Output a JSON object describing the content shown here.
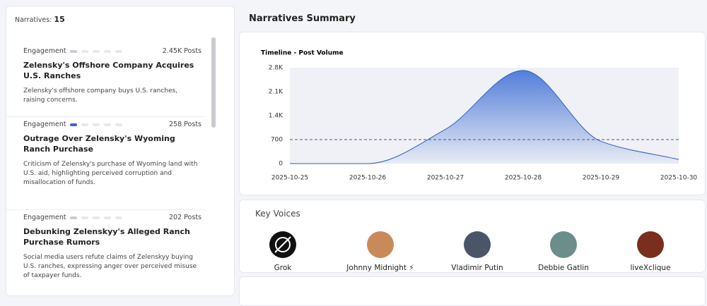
{
  "sidebar": {
    "count_label": "Narratives:",
    "count": "15",
    "items": [
      {
        "engagement_label": "Engagement",
        "posts": "2.45K Posts",
        "title": "Zelensky's Offshore Company Acquires U.S. Ranches",
        "description": "Zelensky's offshore company buys U.S. ranches, raising concerns."
      },
      {
        "engagement_label": "Engagement",
        "posts": "258 Posts",
        "title": "Outrage Over Zelensky's Wyoming Ranch Purchase",
        "description": "Criticism of Zelensky's purchase of Wyoming land with U.S. aid, highlighting perceived corruption and misallocation of funds."
      },
      {
        "engagement_label": "Engagement",
        "posts": "202 Posts",
        "title": "Debunking Zelenskyy's Alleged Ranch Purchase Rumors",
        "description": "Social media users refute claims of Zelenskyy buying U.S. ranches, expressing anger over perceived misuse of taxpayer funds."
      }
    ]
  },
  "summary": {
    "title": "Narratives Summary"
  },
  "chart_data": {
    "type": "area",
    "title": "Timeline - Post Volume",
    "x": [
      "2025-10-25",
      "2025-10-26",
      "2025-10-27",
      "2025-10-28",
      "2025-10-29",
      "2025-10-30"
    ],
    "series": [
      {
        "color": "#4a78d8",
        "values": [
          0,
          0,
          1000,
          2720,
          650,
          120
        ]
      }
    ],
    "ylim": [
      0,
      2800
    ],
    "yticks": [
      0,
      700,
      {
        "value": 1400,
        "label": "1.4K"
      },
      {
        "value": 2100,
        "label": "2.1K"
      },
      {
        "value": 2800,
        "label": "2.8K"
      }
    ],
    "reference_line": 700
  },
  "key_voices": {
    "title": "Key Voices",
    "voices": [
      "Grok",
      "Johnny Midnight ⚡",
      "Vladimir Putin",
      "Debbie Gatlin",
      "liveXclique"
    ]
  }
}
